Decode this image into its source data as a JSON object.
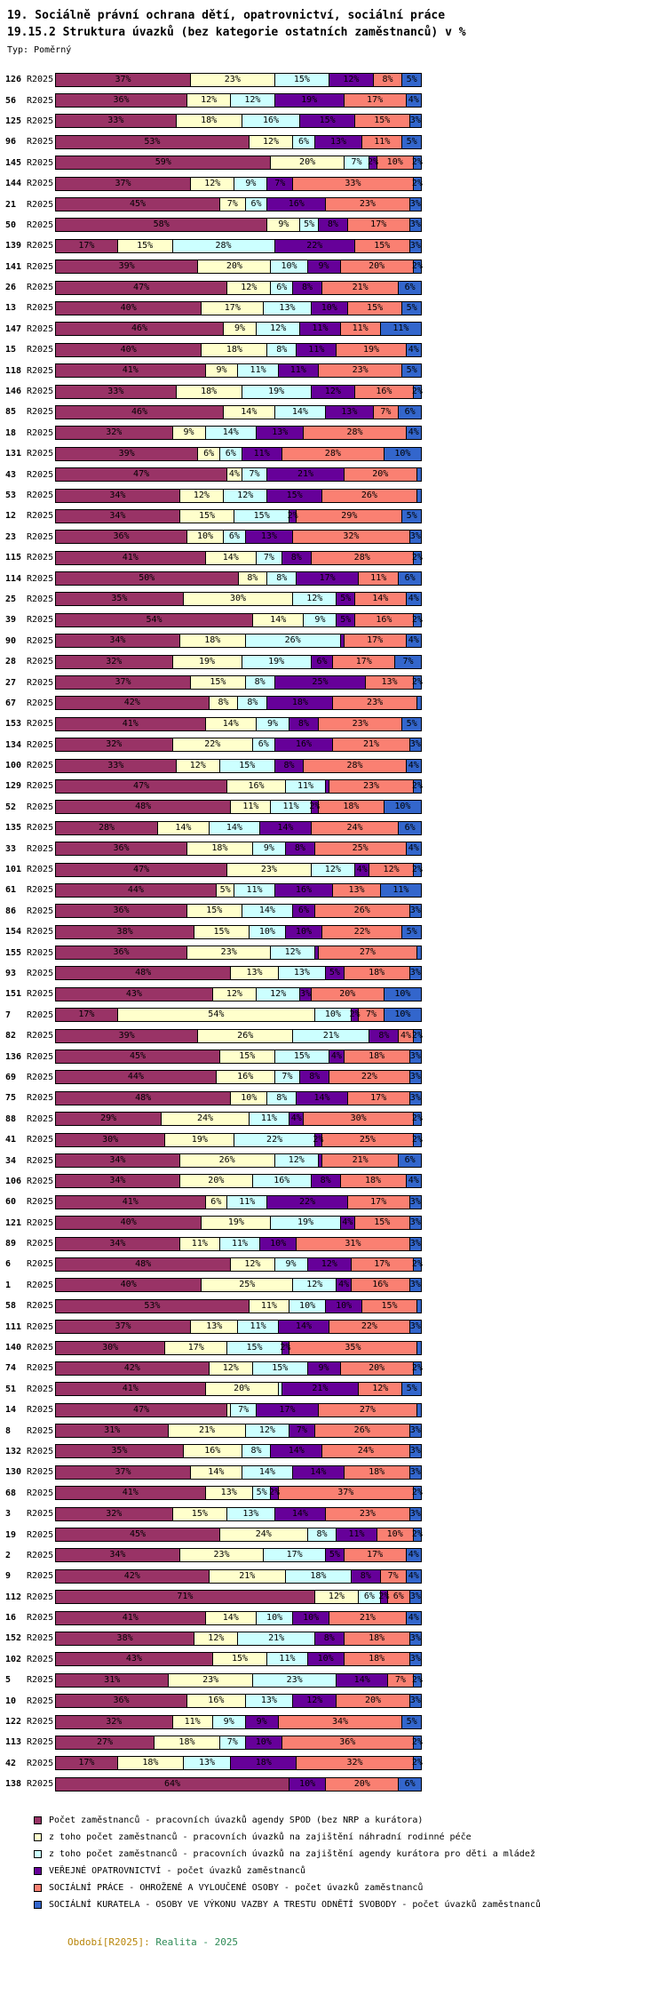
{
  "title": {
    "line1": "19. Sociálně právní ochrana dětí, opatrovnictví, sociální práce",
    "line2": "19.15.2 Struktura úvazků (bez kategorie ostatních zaměstnanců) v %",
    "type_label": "Typ: Poměrný"
  },
  "footer": {
    "prefix": "Období[R2025]:",
    "value": "Realita - 2025",
    "prefix_color": "#b8860b",
    "value_color": "#2e8b57"
  },
  "chart_data": {
    "type": "bar",
    "orientation": "horizontal",
    "stacked": true,
    "title": "19.15.2 Struktura úvazků (bez kategorie ostatních zaměstnanců) v %",
    "subtitle": "19. Sociálně právní ochrana dětí, opatrovnictví, sociální práce",
    "xlabel": "",
    "ylabel": "",
    "unit": "%",
    "xlim": [
      0,
      100
    ],
    "grid": false,
    "legend_position": "bottom",
    "period_label": "R2025",
    "label_min_value": 2,
    "series": [
      {
        "name": "Počet zaměstnanců - pracovních úvazků agendy SPOD (bez NRP a kurátora)",
        "color": "#993366"
      },
      {
        "name": "z toho počet zaměstnanců - pracovních úvazků na zajištění náhradní rodinné péče",
        "color": "#FFFFCC"
      },
      {
        "name": "z toho počet zaměstnanců - pracovních úvazků na zajištění agendy kurátora pro děti a mládež",
        "color": "#CCFFFF"
      },
      {
        "name": "VEŘEJNÉ OPATROVNICTVÍ - počet úvazků zaměstnanců",
        "color": "#660099"
      },
      {
        "name": "SOCIÁLNÍ PRÁCE - OHROŽENÉ A VYLOUČENÉ OSOBY - počet úvazků zaměstnanců",
        "color": "#FA8072"
      },
      {
        "name": "SOCIÁLNÍ KURATELA - OSOBY VE VÝKONU VAZBY A TRESTU ODNĚTÍ SVOBODY - počet úvazků zaměstnanců",
        "color": "#3366CC"
      }
    ],
    "rows": [
      {
        "id": "126",
        "values": [
          37,
          23,
          15,
          12,
          8,
          5
        ]
      },
      {
        "id": "56",
        "values": [
          36,
          12,
          12,
          19,
          17,
          4
        ]
      },
      {
        "id": "125",
        "values": [
          33,
          18,
          16,
          15,
          15,
          3
        ]
      },
      {
        "id": "96",
        "values": [
          53,
          12,
          6,
          13,
          11,
          5
        ]
      },
      {
        "id": "145",
        "values": [
          59,
          20,
          7,
          2,
          10,
          2
        ]
      },
      {
        "id": "144",
        "values": [
          37,
          12,
          9,
          7,
          33,
          2
        ]
      },
      {
        "id": "21",
        "values": [
          45,
          7,
          6,
          16,
          23,
          3
        ]
      },
      {
        "id": "50",
        "values": [
          58,
          9,
          5,
          8,
          17,
          3
        ]
      },
      {
        "id": "139",
        "values": [
          17,
          15,
          28,
          22,
          15,
          3
        ]
      },
      {
        "id": "141",
        "values": [
          39,
          20,
          10,
          9,
          20,
          2
        ]
      },
      {
        "id": "26",
        "values": [
          47,
          12,
          6,
          8,
          21,
          6
        ]
      },
      {
        "id": "13",
        "values": [
          40,
          17,
          13,
          10,
          15,
          5
        ]
      },
      {
        "id": "147",
        "values": [
          46,
          9,
          12,
          11,
          11,
          11
        ]
      },
      {
        "id": "15",
        "values": [
          40,
          18,
          8,
          11,
          19,
          4
        ]
      },
      {
        "id": "118",
        "values": [
          41,
          9,
          11,
          11,
          23,
          5
        ]
      },
      {
        "id": "146",
        "values": [
          33,
          18,
          19,
          12,
          16,
          2
        ]
      },
      {
        "id": "85",
        "values": [
          46,
          14,
          14,
          13,
          7,
          6
        ]
      },
      {
        "id": "18",
        "values": [
          32,
          9,
          14,
          13,
          28,
          4
        ]
      },
      {
        "id": "131",
        "values": [
          39,
          6,
          6,
          11,
          28,
          10
        ]
      },
      {
        "id": "43",
        "values": [
          47,
          4,
          7,
          21,
          20,
          1
        ]
      },
      {
        "id": "53",
        "values": [
          34,
          12,
          12,
          15,
          26,
          1
        ]
      },
      {
        "id": "12",
        "values": [
          34,
          15,
          15,
          2,
          29,
          5
        ]
      },
      {
        "id": "23",
        "values": [
          36,
          10,
          6,
          13,
          32,
          3
        ]
      },
      {
        "id": "115",
        "values": [
          41,
          14,
          7,
          8,
          28,
          2
        ]
      },
      {
        "id": "114",
        "values": [
          50,
          8,
          8,
          17,
          11,
          6
        ]
      },
      {
        "id": "25",
        "values": [
          35,
          30,
          12,
          5,
          14,
          4
        ]
      },
      {
        "id": "39",
        "values": [
          54,
          14,
          9,
          5,
          16,
          2
        ]
      },
      {
        "id": "90",
        "values": [
          34,
          18,
          26,
          1,
          17,
          4
        ]
      },
      {
        "id": "28",
        "values": [
          32,
          19,
          19,
          6,
          17,
          7
        ]
      },
      {
        "id": "27",
        "values": [
          37,
          15,
          8,
          25,
          13,
          2
        ]
      },
      {
        "id": "67",
        "values": [
          42,
          8,
          8,
          18,
          23,
          1
        ]
      },
      {
        "id": "153",
        "values": [
          41,
          14,
          9,
          8,
          23,
          5
        ]
      },
      {
        "id": "134",
        "values": [
          32,
          22,
          6,
          16,
          21,
          3
        ]
      },
      {
        "id": "100",
        "values": [
          33,
          12,
          15,
          8,
          28,
          4
        ]
      },
      {
        "id": "129",
        "values": [
          47,
          16,
          11,
          1,
          23,
          2
        ]
      },
      {
        "id": "52",
        "values": [
          48,
          11,
          11,
          2,
          18,
          10
        ]
      },
      {
        "id": "135",
        "values": [
          28,
          14,
          14,
          14,
          24,
          6
        ]
      },
      {
        "id": "33",
        "values": [
          36,
          18,
          9,
          8,
          25,
          4
        ]
      },
      {
        "id": "101",
        "values": [
          47,
          23,
          12,
          4,
          12,
          2
        ]
      },
      {
        "id": "61",
        "values": [
          44,
          5,
          11,
          16,
          13,
          11
        ]
      },
      {
        "id": "86",
        "values": [
          36,
          15,
          14,
          6,
          26,
          3
        ]
      },
      {
        "id": "154",
        "values": [
          38,
          15,
          10,
          10,
          22,
          5
        ]
      },
      {
        "id": "155",
        "values": [
          36,
          23,
          12,
          1,
          27,
          1
        ]
      },
      {
        "id": "93",
        "values": [
          48,
          13,
          13,
          5,
          18,
          3
        ]
      },
      {
        "id": "151",
        "values": [
          43,
          12,
          12,
          3,
          20,
          10
        ]
      },
      {
        "id": "7",
        "values": [
          17,
          54,
          10,
          2,
          7,
          10
        ]
      },
      {
        "id": "82",
        "values": [
          39,
          26,
          21,
          8,
          4,
          2
        ]
      },
      {
        "id": "136",
        "values": [
          45,
          15,
          15,
          4,
          18,
          3
        ]
      },
      {
        "id": "69",
        "values": [
          44,
          16,
          7,
          8,
          22,
          3
        ]
      },
      {
        "id": "75",
        "values": [
          48,
          10,
          8,
          14,
          17,
          3
        ]
      },
      {
        "id": "88",
        "values": [
          29,
          24,
          11,
          4,
          30,
          2
        ]
      },
      {
        "id": "41",
        "values": [
          30,
          19,
          22,
          2,
          25,
          2
        ]
      },
      {
        "id": "34",
        "values": [
          34,
          26,
          12,
          1,
          21,
          6
        ]
      },
      {
        "id": "106",
        "values": [
          34,
          20,
          16,
          8,
          18,
          4
        ]
      },
      {
        "id": "60",
        "values": [
          41,
          6,
          11,
          22,
          17,
          3
        ]
      },
      {
        "id": "121",
        "values": [
          40,
          19,
          19,
          4,
          15,
          3
        ]
      },
      {
        "id": "89",
        "values": [
          34,
          11,
          11,
          10,
          31,
          3
        ]
      },
      {
        "id": "6",
        "values": [
          48,
          12,
          9,
          12,
          17,
          2
        ]
      },
      {
        "id": "1",
        "values": [
          40,
          25,
          12,
          4,
          16,
          3
        ]
      },
      {
        "id": "58",
        "values": [
          53,
          11,
          10,
          10,
          15,
          1
        ]
      },
      {
        "id": "111",
        "values": [
          37,
          13,
          11,
          14,
          22,
          3
        ]
      },
      {
        "id": "140",
        "values": [
          30,
          17,
          15,
          2,
          35,
          1
        ]
      },
      {
        "id": "74",
        "values": [
          42,
          12,
          15,
          9,
          20,
          2
        ]
      },
      {
        "id": "51",
        "values": [
          41,
          20,
          1,
          21,
          12,
          5
        ]
      },
      {
        "id": "14",
        "values": [
          47,
          1,
          7,
          17,
          27,
          1
        ]
      },
      {
        "id": "8",
        "values": [
          31,
          21,
          12,
          7,
          26,
          3
        ]
      },
      {
        "id": "132",
        "values": [
          35,
          16,
          8,
          14,
          24,
          3
        ]
      },
      {
        "id": "130",
        "values": [
          37,
          14,
          14,
          14,
          18,
          3
        ]
      },
      {
        "id": "68",
        "values": [
          41,
          13,
          5,
          2,
          37,
          2
        ]
      },
      {
        "id": "3",
        "values": [
          32,
          15,
          13,
          14,
          23,
          3
        ]
      },
      {
        "id": "19",
        "values": [
          45,
          24,
          8,
          11,
          10,
          2
        ]
      },
      {
        "id": "2",
        "values": [
          34,
          23,
          17,
          5,
          17,
          4
        ]
      },
      {
        "id": "9",
        "values": [
          42,
          21,
          18,
          8,
          7,
          4
        ]
      },
      {
        "id": "112",
        "values": [
          71,
          12,
          6,
          2,
          6,
          3
        ]
      },
      {
        "id": "16",
        "values": [
          41,
          14,
          10,
          10,
          21,
          4
        ]
      },
      {
        "id": "152",
        "values": [
          38,
          12,
          21,
          8,
          18,
          3
        ]
      },
      {
        "id": "102",
        "values": [
          43,
          15,
          11,
          10,
          18,
          3
        ]
      },
      {
        "id": "5",
        "values": [
          31,
          23,
          23,
          14,
          7,
          2
        ]
      },
      {
        "id": "10",
        "values": [
          36,
          16,
          13,
          12,
          20,
          3
        ]
      },
      {
        "id": "122",
        "values": [
          32,
          11,
          9,
          9,
          34,
          5
        ]
      },
      {
        "id": "113",
        "values": [
          27,
          18,
          7,
          10,
          36,
          2
        ]
      },
      {
        "id": "42",
        "values": [
          17,
          18,
          13,
          18,
          32,
          2
        ]
      },
      {
        "id": "138",
        "values": [
          64,
          0,
          0,
          10,
          20,
          6
        ]
      }
    ]
  }
}
